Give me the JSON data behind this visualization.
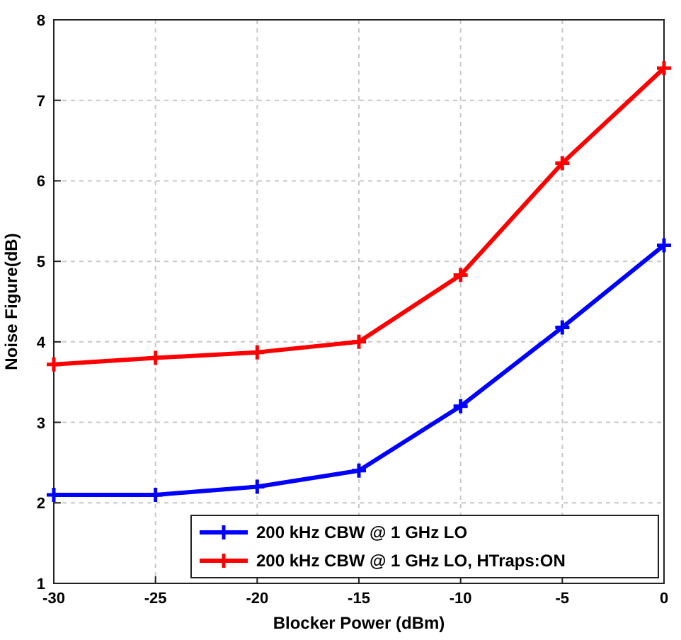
{
  "chart_data": {
    "type": "line",
    "xlabel": "Blocker Power (dBm)",
    "ylabel": "Noise Figure(dB)",
    "x": [
      -30,
      -25,
      -20,
      -15,
      -10,
      -5,
      0
    ],
    "series": [
      {
        "name": "200 kHz CBW @ 1 GHz LO",
        "color": "#0000ff",
        "values": [
          2.1,
          2.1,
          2.2,
          2.4,
          3.2,
          4.18,
          5.2
        ]
      },
      {
        "name": "200 kHz CBW @ 1 GHz LO, HTraps:ON",
        "color": "#ff0000",
        "values": [
          3.72,
          3.8,
          3.87,
          4.0,
          4.83,
          6.22,
          7.4
        ]
      }
    ],
    "xlim": [
      -30,
      0
    ],
    "xticks": [
      -30,
      -25,
      -20,
      -15,
      -10,
      -5,
      0
    ],
    "ylim": [
      1,
      8
    ],
    "yticks": [
      1,
      2,
      3,
      4,
      5,
      6,
      7,
      8
    ],
    "grid": true,
    "legend": "bottom right",
    "marker": "cross",
    "line_style": "solid"
  }
}
